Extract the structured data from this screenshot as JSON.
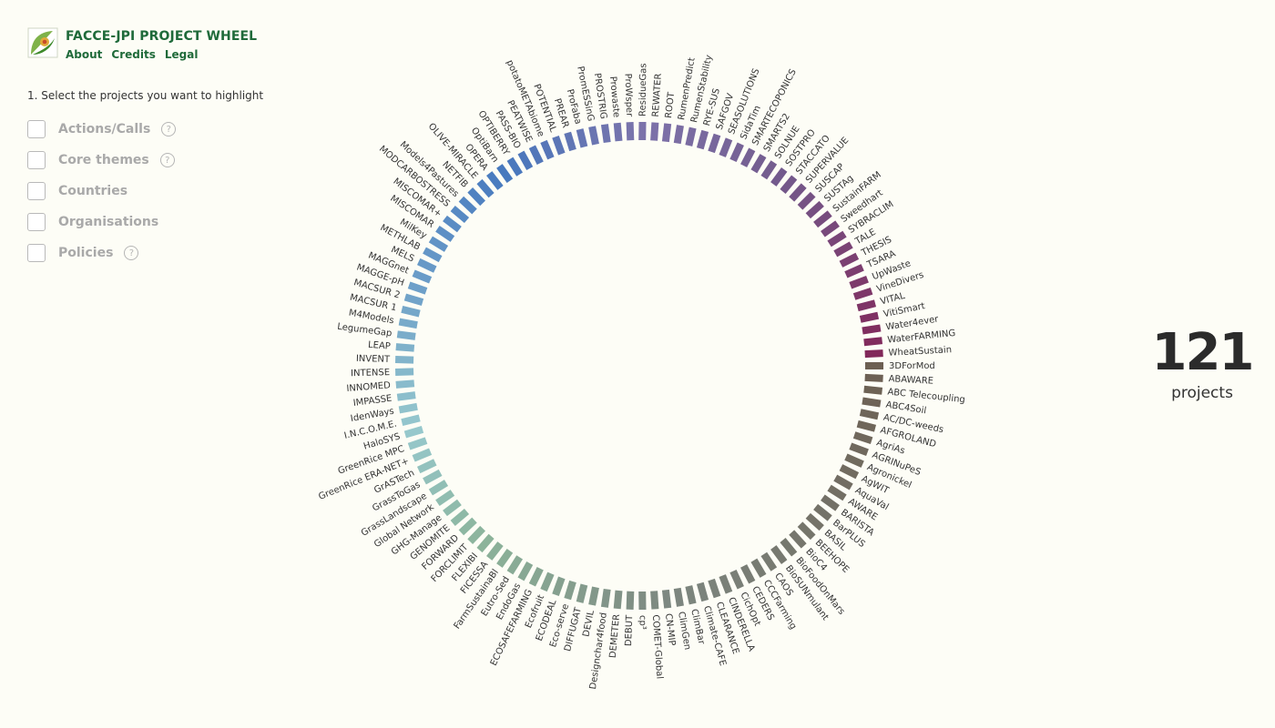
{
  "header": {
    "title": "FACCE-JPI PROJECT WHEEL"
  },
  "nav": [
    {
      "label": "About"
    },
    {
      "label": "Credits"
    },
    {
      "label": "Legal"
    }
  ],
  "instruction": "1. Select the projects you want to highlight",
  "filters": [
    {
      "label": "Actions/Calls",
      "help": true
    },
    {
      "label": "Core themes",
      "help": true
    },
    {
      "label": "Countries",
      "help": false
    },
    {
      "label": "Organisations",
      "help": false
    },
    {
      "label": "Policies",
      "help": true
    }
  ],
  "help_glyph": "?",
  "count": {
    "value": "121",
    "label": "projects"
  },
  "projects": [
    "3DForMod",
    "ABAWARE",
    "ABC Telecoupling",
    "ABC4Soil",
    "AC/DC-weeds",
    "AFGROLAND",
    "AgriAs",
    "AGRINuPeS",
    "Agronickel",
    "AgWIT",
    "AquaVal",
    "AWARE",
    "BARISTA",
    "BarPLUS",
    "BASIL",
    "BEEHOPE",
    "BioC4",
    "BioFoodOnMars",
    "BioSUNmulant",
    "CAOS",
    "CCCFarming",
    "CEDERS",
    "CichOpt",
    "CINDERELLA",
    "CLEARANCE",
    "Climate-CAFE",
    "ClimBar",
    "ClimGen",
    "CN-MIP",
    "COMET-Global",
    "cp³",
    "DEBUT",
    "DEMETER",
    "Designchar4food",
    "DEVIL",
    "DIFFUGAT",
    "Eco-serve",
    "ECODEAL",
    "Ecofruit",
    "ECOSAFEFARMING",
    "EndoGas",
    "Eutro-Sed",
    "FarmSustainaBl",
    "FICESSA",
    "FLEXIBI",
    "FORCLIMIT",
    "FORWARD",
    "GENOMITE",
    "GHG-Manage",
    "Global Network",
    "GrassLandscape",
    "GrassToGas",
    "GrASTech",
    "GreenRice ERA-NET+",
    "GreenRice MPC",
    "HaloSYS",
    "I.N.C.O.M.E.",
    "IdenWays",
    "IMPASSE",
    "INNOMED",
    "INTENSE",
    "INVENT",
    "LEAP",
    "LegumeGap",
    "M4Models",
    "MACSUR 1",
    "MACSUR 2",
    "MAGGE-pH",
    "MAGGnet",
    "MELS",
    "METHLAB",
    "MilKey",
    "MISCOMAR",
    "MISCOMAR+",
    "MODCARBOSTRESS",
    "Models4Pastures",
    "NETFIB",
    "OLIVE-MIRACLE",
    "OPERA",
    "OptiBarn",
    "OPTIBERRY",
    "PASS-BIO",
    "PEATWISE",
    "potatoMETAbiome",
    "POTENTIAL",
    "PREAR",
    "ProFaba",
    "PromESSinG",
    "PROSTRIG",
    "Prowaste",
    "ProWsper",
    "ResidueGas",
    "REWATER",
    "ROOT",
    "RumenPredict",
    "RumenStability",
    "RYE-SUS",
    "SAFGOV",
    "SEASOLUTIONS",
    "SidaTim",
    "SMARTECOPONICS",
    "SMARTS2",
    "SOLNUE",
    "SOSTPRO",
    "STACCATO",
    "SUPERVALUE",
    "SUSCAP",
    "SUSTAg",
    "SustainFARM",
    "Sweedhart",
    "SYBRACLIM",
    "TALE",
    "THESIS",
    "TSARA",
    "UpWaste",
    "VineDivers",
    "VITAL",
    "VitiSmart",
    "Water4ever",
    "WaterFARMING",
    "WheatSustain"
  ]
}
